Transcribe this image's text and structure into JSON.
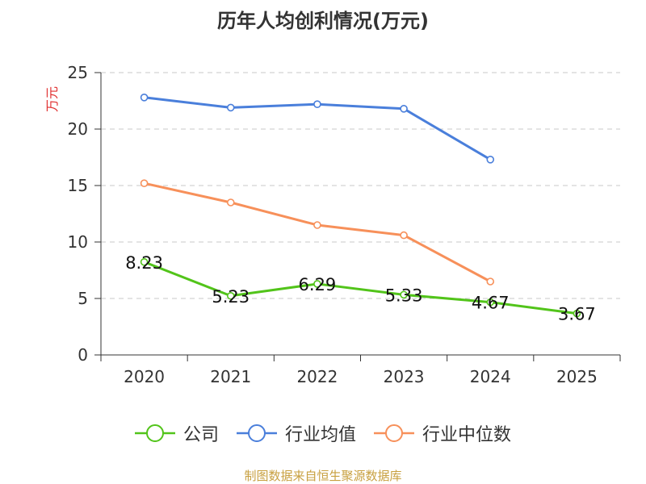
{
  "chart_data": {
    "type": "line",
    "title": "历年人均创利情况(万元)",
    "ylabel": "万元",
    "xlabel": "",
    "ylim": [
      0,
      25
    ],
    "yticks": [
      0,
      5,
      10,
      15,
      20,
      25
    ],
    "categories": [
      "2020",
      "2021",
      "2022",
      "2023",
      "2024",
      "2025"
    ],
    "series": [
      {
        "name": "公司",
        "color": "#52c41a",
        "values": [
          8.23,
          5.23,
          6.29,
          5.33,
          4.67,
          3.67
        ],
        "labels": [
          "8.23",
          "5.23",
          "6.29",
          "5.33",
          "4.67",
          "3.67"
        ]
      },
      {
        "name": "行业均值",
        "color": "#4a7fdb",
        "values": [
          22.8,
          21.9,
          22.2,
          21.8,
          17.3,
          null
        ]
      },
      {
        "name": "行业中位数",
        "color": "#f7905a",
        "values": [
          15.2,
          13.5,
          11.5,
          10.6,
          6.5,
          null
        ]
      }
    ],
    "grid": true,
    "legend_position": "bottom"
  },
  "source": "制图数据来自恒生聚源数据库"
}
